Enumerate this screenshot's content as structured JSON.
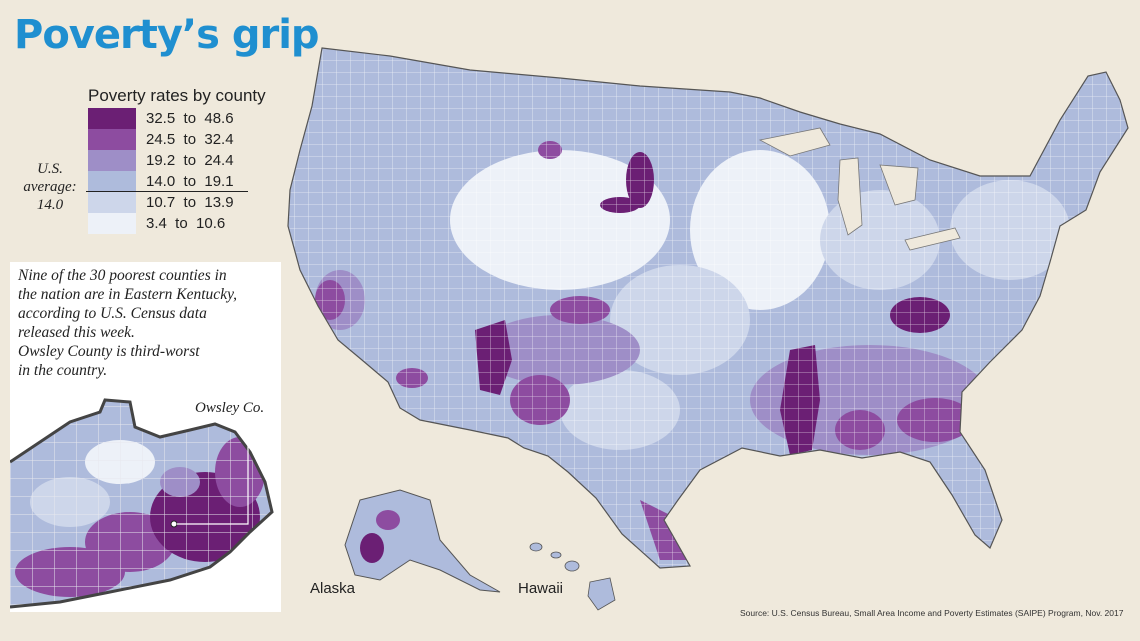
{
  "title": "Poverty’s grip",
  "legend": {
    "title": "Poverty rates by county",
    "bins": [
      {
        "label": "32.5  to  48.6",
        "color": "#6b1f74"
      },
      {
        "label": "24.5  to  32.4",
        "color": "#8d4ca0"
      },
      {
        "label": "19.2  to  24.4",
        "color": "#9e8ec7"
      },
      {
        "label": "14.0  to  19.1",
        "color": "#aebbdc"
      },
      {
        "label": "10.7  to  13.9",
        "color": "#cdd6ea"
      },
      {
        "label": "3.4  to  10.6",
        "color": "#edf1f8"
      }
    ],
    "us_average": {
      "line1": "U.S.",
      "line2": "average:",
      "line3": "14.0"
    }
  },
  "inset": {
    "text_lines": [
      "Nine of the 30 poorest counties in",
      "the nation are in Eastern Kentucky,",
      "according to U.S. Census data",
      "released this week.",
      "Owsley County is third-worst",
      "in the country."
    ],
    "owsley_label": "Owsley Co."
  },
  "map_labels": {
    "alaska": "Alaska",
    "hawaii": "Hawaii"
  },
  "source": "Source: U.S. Census Bureau, Small Area Income and Poverty Estimates (SAIPE) Program, Nov. 2017"
}
